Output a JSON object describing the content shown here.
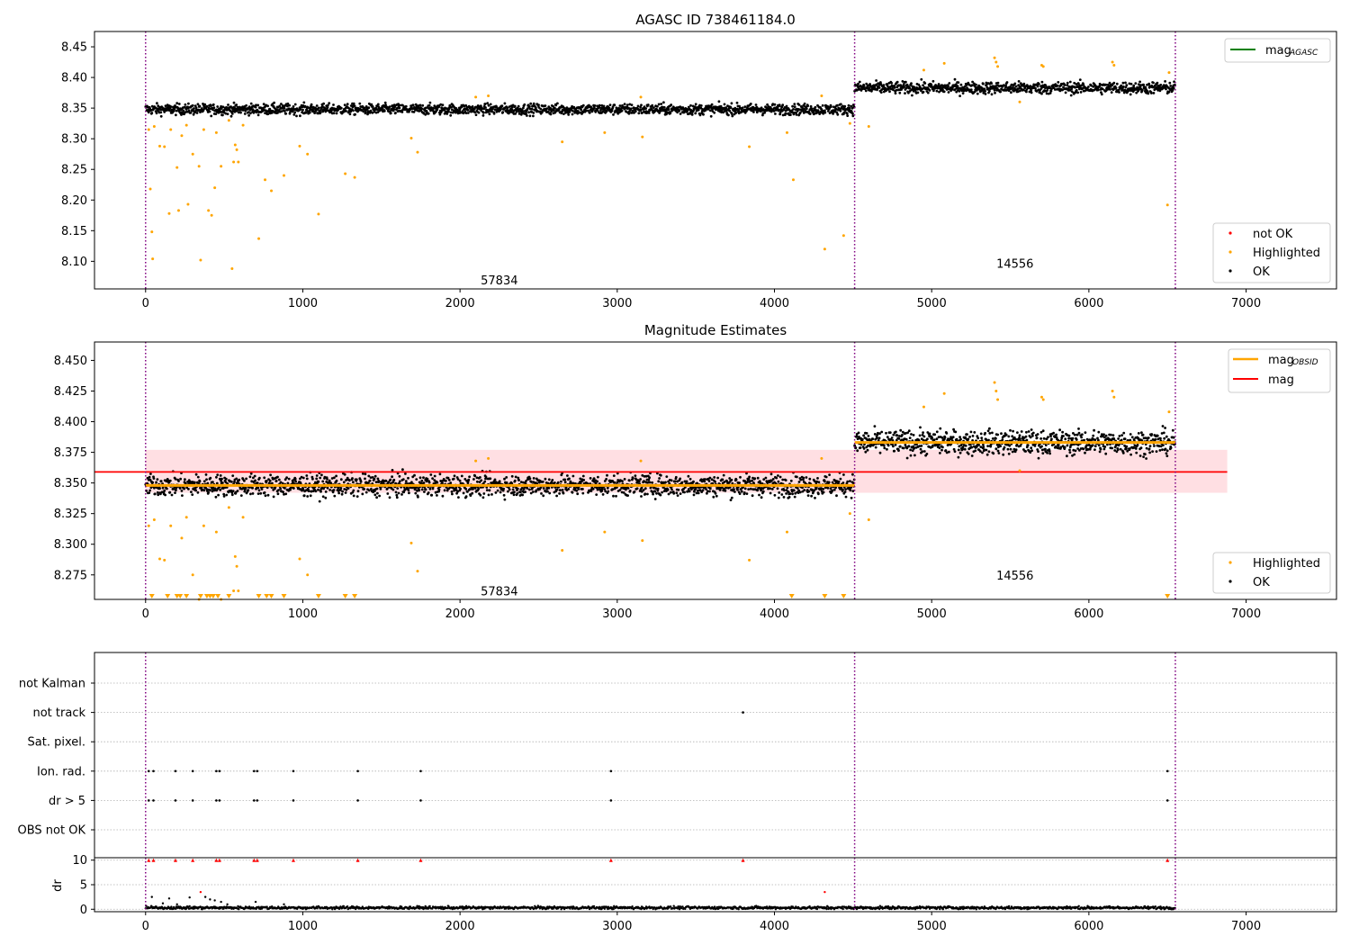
{
  "chart_data": [
    {
      "type": "scatter",
      "title": "AGASC ID 738461184.0",
      "xlabel": "",
      "ylabel": "",
      "xlim": [
        -325,
        7575
      ],
      "ylim": [
        8.055,
        8.475
      ],
      "x_ticks": [
        0,
        1000,
        2000,
        3000,
        4000,
        5000,
        6000,
        7000
      ],
      "y_ticks": [
        8.1,
        8.15,
        8.2,
        8.25,
        8.3,
        8.35,
        8.4,
        8.45
      ],
      "obs_boundaries": [
        0,
        4510,
        6550
      ],
      "obs_annotations": [
        {
          "label": "57834",
          "x": 2250,
          "y": 8.07
        },
        {
          "label": "14556",
          "x": 5530,
          "y": 8.097
        }
      ],
      "series": [
        {
          "name": "OK",
          "color": "#000000",
          "segments": [
            {
              "x_range": [
                0,
                4510
              ],
              "center": 8.348,
              "spread": 0.008
            },
            {
              "x_range": [
                4510,
                6550
              ],
              "center": 8.383,
              "spread": 0.009
            }
          ]
        },
        {
          "name": "Highlighted",
          "color": "#ffa500",
          "points": [
            [
              20,
              8.315
            ],
            [
              30,
              8.218
            ],
            [
              40,
              8.148
            ],
            [
              45,
              8.104
            ],
            [
              55,
              8.32
            ],
            [
              90,
              8.288
            ],
            [
              120,
              8.287
            ],
            [
              150,
              8.178
            ],
            [
              160,
              8.315
            ],
            [
              200,
              8.253
            ],
            [
              210,
              8.183
            ],
            [
              230,
              8.305
            ],
            [
              260,
              8.322
            ],
            [
              270,
              8.193
            ],
            [
              300,
              8.275
            ],
            [
              340,
              8.255
            ],
            [
              350,
              8.102
            ],
            [
              370,
              8.315
            ],
            [
              400,
              8.183
            ],
            [
              420,
              8.175
            ],
            [
              440,
              8.22
            ],
            [
              450,
              8.31
            ],
            [
              480,
              8.255
            ],
            [
              530,
              8.33
            ],
            [
              550,
              8.088
            ],
            [
              560,
              8.262
            ],
            [
              570,
              8.29
            ],
            [
              580,
              8.282
            ],
            [
              590,
              8.262
            ],
            [
              620,
              8.322
            ],
            [
              720,
              8.137
            ],
            [
              760,
              8.233
            ],
            [
              800,
              8.215
            ],
            [
              880,
              8.24
            ],
            [
              980,
              8.288
            ],
            [
              1030,
              8.275
            ],
            [
              1100,
              8.177
            ],
            [
              1270,
              8.243
            ],
            [
              1330,
              8.237
            ],
            [
              1690,
              8.301
            ],
            [
              1730,
              8.278
            ],
            [
              2100,
              8.368
            ],
            [
              2180,
              8.37
            ],
            [
              2650,
              8.295
            ],
            [
              2920,
              8.31
            ],
            [
              3150,
              8.368
            ],
            [
              3160,
              8.303
            ],
            [
              3840,
              8.287
            ],
            [
              4080,
              8.31
            ],
            [
              4120,
              8.233
            ],
            [
              4300,
              8.37
            ],
            [
              4320,
              8.12
            ],
            [
              4440,
              8.142
            ],
            [
              4480,
              8.325
            ],
            [
              4600,
              8.32
            ],
            [
              4950,
              8.412
            ],
            [
              5080,
              8.423
            ],
            [
              5400,
              8.432
            ],
            [
              5410,
              8.425
            ],
            [
              5420,
              8.418
            ],
            [
              5560,
              8.36
            ],
            [
              5700,
              8.42
            ],
            [
              5710,
              8.418
            ],
            [
              6150,
              8.425
            ],
            [
              6160,
              8.42
            ],
            [
              6500,
              8.192
            ],
            [
              6510,
              8.408
            ]
          ]
        },
        {
          "name": "not OK",
          "color": "#ff0000",
          "points": []
        },
        {
          "name": "mag$_{AGASC}$",
          "color": "#008000",
          "points": []
        }
      ],
      "legend_top": [
        {
          "label": "mag",
          "sub": "AGASC",
          "color": "#008000"
        }
      ],
      "legend_bottom": [
        {
          "label": "not OK",
          "color": "#ff0000"
        },
        {
          "label": "Highlighted",
          "color": "#ffa500"
        },
        {
          "label": "OK",
          "color": "#000000"
        }
      ],
      "grid": false,
      "legend_position": "top-right and bottom-right"
    },
    {
      "type": "scatter",
      "title": "Magnitude Estimates",
      "xlabel": "",
      "ylabel": "",
      "xlim": [
        -325,
        7575
      ],
      "ylim": [
        8.255,
        8.465
      ],
      "x_ticks": [
        0,
        1000,
        2000,
        3000,
        4000,
        5000,
        6000,
        7000
      ],
      "y_ticks": [
        8.275,
        8.3,
        8.325,
        8.35,
        8.375,
        8.4,
        8.425,
        8.45
      ],
      "obs_boundaries": [
        0,
        4510,
        6550
      ],
      "obs_annotations": [
        {
          "label": "57834",
          "x": 2250,
          "y": 8.262
        },
        {
          "label": "14556",
          "x": 5530,
          "y": 8.275
        }
      ],
      "mag": {
        "value": 8.359,
        "band": [
          8.342,
          8.377
        ],
        "x_range": [
          0,
          6880
        ],
        "color": "#ff0000"
      },
      "mag_obsid": [
        {
          "x_range": [
            0,
            4510
          ],
          "value": 8.348
        },
        {
          "x_range": [
            4510,
            6550
          ],
          "value": 8.383
        }
      ],
      "offscale_markers_x": [
        40,
        140,
        200,
        220,
        260,
        350,
        390,
        410,
        430,
        460,
        530,
        720,
        770,
        800,
        880,
        1100,
        1270,
        1330,
        4110,
        4320,
        4440,
        6500
      ],
      "series": [
        {
          "name": "OK",
          "color": "#000000"
        },
        {
          "name": "Highlighted",
          "color": "#ffa500"
        },
        {
          "name": "mag$_{OBSID}$",
          "color": "#ffa500"
        },
        {
          "name": "mag",
          "color": "#ff0000"
        }
      ],
      "legend_top": [
        {
          "label": "mag",
          "sub": "OBSID",
          "color": "#ffa500"
        },
        {
          "label": "mag",
          "sub": "",
          "color": "#ff0000"
        }
      ],
      "legend_bottom": [
        {
          "label": "Highlighted",
          "color": "#ffa500"
        },
        {
          "label": "OK",
          "color": "#000000"
        }
      ],
      "grid": false,
      "legend_position": "top-right and bottom-right"
    },
    {
      "type": "scatter",
      "title": "",
      "xlabel": "",
      "ylabel": "",
      "xlim": [
        -325,
        7575
      ],
      "categories": [
        "not Kalman",
        "not track",
        "Sat. pixel.",
        "Ion. rad.",
        "dr > 5",
        "OBS not OK"
      ],
      "obs_boundaries": [
        0,
        4510,
        6550
      ],
      "flags": {
        "not Kalman": [],
        "not track": [
          3800
        ],
        "Sat. pixel.": [],
        "Ion. rad.": [
          20,
          50,
          190,
          300,
          450,
          470,
          690,
          710,
          940,
          1350,
          1750,
          2960,
          6500
        ],
        "dr > 5": [
          20,
          50,
          190,
          300,
          450,
          470,
          690,
          710,
          940,
          1350,
          1750,
          2960,
          6500
        ],
        "OBS not OK": []
      },
      "grid": true
    },
    {
      "type": "scatter",
      "title": "",
      "xlabel": "",
      "ylabel": "dr",
      "xlim": [
        -325,
        7575
      ],
      "ylim": [
        -0.5,
        10.5
      ],
      "y_ticks": [
        0,
        5,
        10
      ],
      "obs_boundaries": [
        0,
        4510,
        6550
      ],
      "capped_points_x": [
        20,
        50,
        190,
        300,
        450,
        470,
        690,
        710,
        940,
        1350,
        1750,
        2960,
        3800,
        6500
      ],
      "outlier_points": [
        [
          40,
          2.5
        ],
        [
          110,
          1.2
        ],
        [
          150,
          2.2
        ],
        [
          200,
          1.0
        ],
        [
          280,
          2.4
        ],
        [
          350,
          3.5
        ],
        [
          380,
          2.5
        ],
        [
          410,
          2.0
        ],
        [
          440,
          1.8
        ],
        [
          480,
          1.5
        ],
        [
          520,
          1.0
        ],
        [
          700,
          1.5
        ],
        [
          880,
          1.0
        ],
        [
          4320,
          3.5
        ]
      ],
      "baseline_dr": 0.3,
      "grid": true
    }
  ]
}
